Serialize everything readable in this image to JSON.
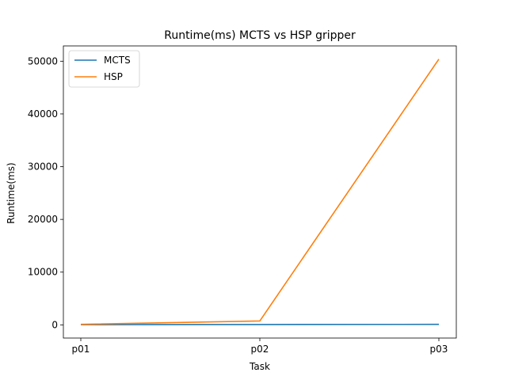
{
  "chart_data": {
    "type": "line",
    "title": "Runtime(ms) MCTS vs HSP gripper",
    "xlabel": "Task",
    "ylabel": "Runtime(ms)",
    "categories": [
      "p01",
      "p02",
      "p03"
    ],
    "ylim": [
      -2500,
      52900
    ],
    "yticks": [
      0,
      10000,
      20000,
      30000,
      40000,
      50000
    ],
    "grid": false,
    "legend": "top-left",
    "series": [
      {
        "name": "MCTS",
        "color": "#1f77b4",
        "values": [
          30,
          60,
          90
        ]
      },
      {
        "name": "HSP",
        "color": "#ff7f0e",
        "values": [
          100,
          750,
          50400
        ]
      }
    ]
  }
}
